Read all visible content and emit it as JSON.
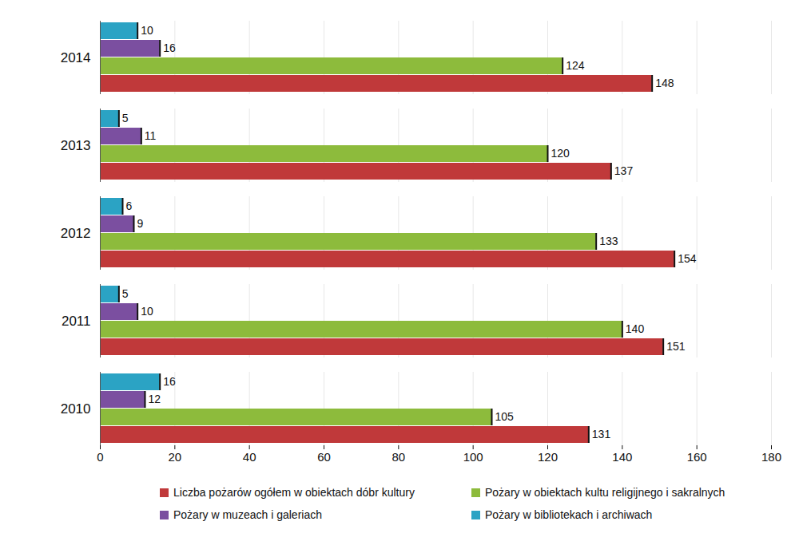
{
  "chart_data": {
    "type": "bar",
    "orientation": "horizontal",
    "categories": [
      "2014",
      "2013",
      "2012",
      "2011",
      "2010"
    ],
    "series": [
      {
        "name": "Liczba pożarów ogółem w obiektach dóbr kultury",
        "color": "#c0393a",
        "values": [
          148,
          137,
          154,
          151,
          131
        ]
      },
      {
        "name": "Pożary w obiektach kultu religijnego i sakralnych",
        "color": "#8dbb3c",
        "values": [
          124,
          120,
          133,
          140,
          105
        ]
      },
      {
        "name": "Pożary w muzeach i galeriach",
        "color": "#7b4fa0",
        "values": [
          16,
          11,
          9,
          10,
          12
        ]
      },
      {
        "name": "Pożary w bibliotekach i archiwach",
        "color": "#2ba3c4",
        "values": [
          10,
          5,
          6,
          5,
          16
        ]
      }
    ],
    "xlim": [
      0,
      180
    ],
    "xticks": [
      0,
      20,
      40,
      60,
      80,
      100,
      120,
      140,
      160,
      180
    ],
    "grid": true,
    "data_labels": true,
    "legend": "bottom"
  }
}
